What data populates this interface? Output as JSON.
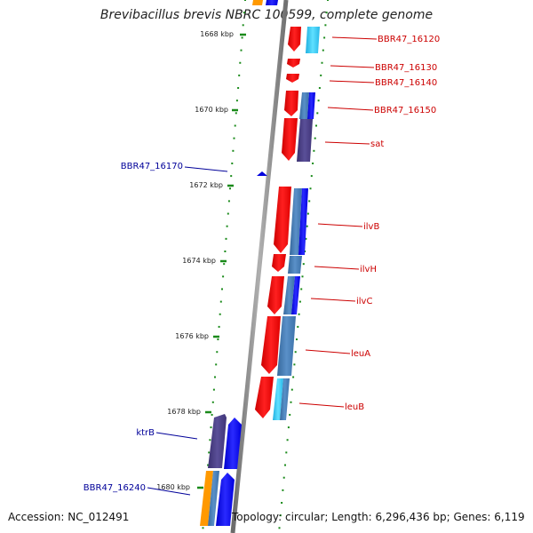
{
  "title": "Brevibacillus brevis NBRC 100599, complete genome",
  "footer": {
    "accession": "Accession: NC_012491",
    "topology": "Topology: circular; Length: 6,296,436 bp; Genes: 6,119"
  },
  "ticks": [
    "1668 kbp",
    "1670 kbp",
    "1672 kbp",
    "1674 kbp",
    "1676 kbp",
    "1678 kbp",
    "1680 kbp"
  ],
  "forward_genes": [
    "BBR47_16120",
    "BBR47_16130",
    "BBR47_16140",
    "BBR47_16150",
    "sat",
    "ilvB",
    "ilvH",
    "ilvC",
    "leuA",
    "leuB"
  ],
  "reverse_genes": [
    "BBR47_16170",
    "ktrB",
    "BBR47_16240"
  ],
  "colors": {
    "cds_red": "#ff0000",
    "cds_blue": "#0000ff",
    "cds_steel": "#4a7fb5",
    "cds_purple": "#4a3f80",
    "cds_cyan": "#30c8f0",
    "cds_orange": "#ff9900",
    "backbone": "#808080",
    "tick_green": "#1a8a1a",
    "label_red": "#cc0000",
    "label_blue": "#000099"
  }
}
